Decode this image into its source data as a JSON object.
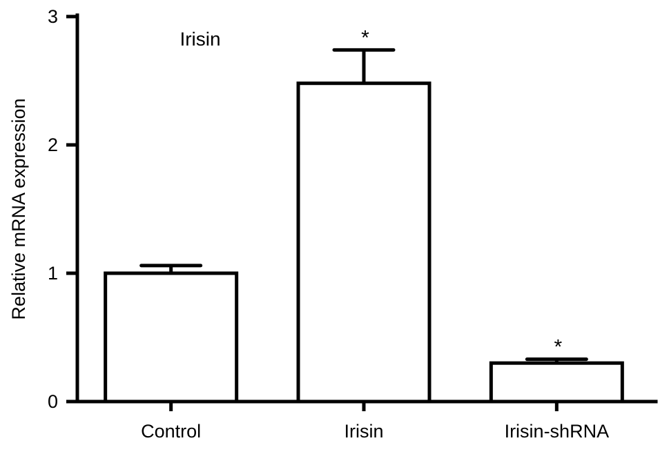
{
  "chart_data": {
    "type": "bar",
    "title": "",
    "annotation": "Irisin",
    "xlabel": "",
    "ylabel": "Relative mRNA expression",
    "categories": [
      "Control",
      "Irisin",
      "Irisin-shRNA"
    ],
    "values": [
      1.0,
      2.48,
      0.3
    ],
    "error_bars": [
      0.06,
      0.26,
      0.03
    ],
    "significance": [
      "",
      "*",
      "*"
    ],
    "ylim": [
      0,
      3
    ],
    "yticks": [
      0,
      1,
      2,
      3
    ],
    "ytick_labels": [
      "0",
      "1",
      "2",
      "3"
    ],
    "grid": false,
    "legend": "none",
    "colors": {
      "bar_fill": "#ffffff",
      "bar_stroke": "#000000",
      "axis": "#000000"
    }
  }
}
